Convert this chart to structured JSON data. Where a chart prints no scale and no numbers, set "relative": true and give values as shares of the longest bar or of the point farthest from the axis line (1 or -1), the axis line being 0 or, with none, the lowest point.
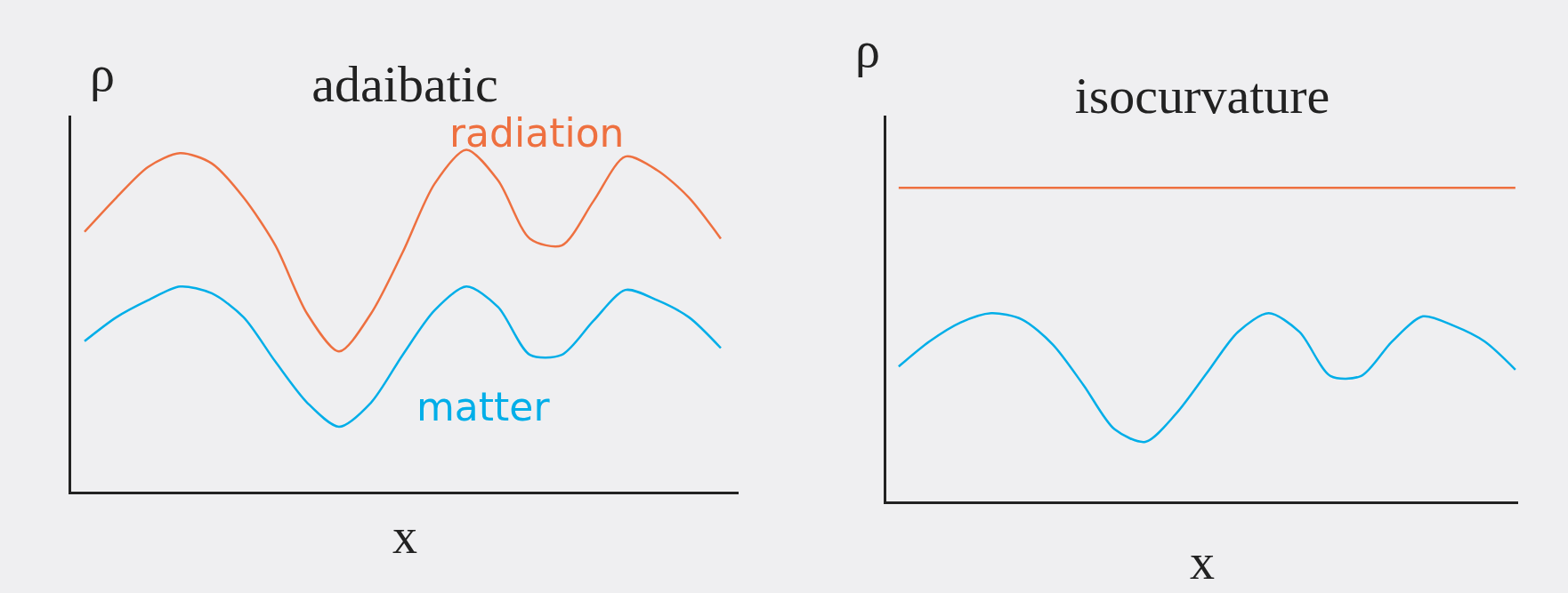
{
  "chart_data": [
    {
      "type": "line",
      "title": "adaibatic",
      "xlabel": "x",
      "ylabel": "ρ",
      "relative": true,
      "grid": false,
      "legend": false,
      "marker": "none",
      "line_style": "solid",
      "categories": [
        null,
        null,
        null,
        null,
        null,
        null,
        null,
        null,
        null,
        null,
        null,
        null,
        null,
        null,
        null,
        null,
        null,
        null,
        null,
        null,
        null
      ],
      "series": [
        {
          "name": "radiation",
          "color": "#ee7040",
          "values": [
            0.76,
            0.86,
            0.95,
            0.99,
            0.96,
            0.86,
            0.72,
            0.52,
            0.41,
            0.52,
            0.7,
            0.9,
            1.0,
            0.91,
            0.74,
            0.72,
            0.85,
            0.98,
            0.94,
            0.86,
            0.74
          ]
        },
        {
          "name": "matter",
          "color": "#00aee8",
          "values": [
            0.44,
            0.51,
            0.56,
            0.6,
            0.58,
            0.51,
            0.38,
            0.26,
            0.19,
            0.26,
            0.4,
            0.53,
            0.6,
            0.54,
            0.4,
            0.4,
            0.5,
            0.59,
            0.56,
            0.51,
            0.42
          ]
        }
      ]
    },
    {
      "type": "line",
      "title": "isocurvature",
      "xlabel": "x",
      "ylabel": "ρ",
      "relative": true,
      "grid": false,
      "legend": false,
      "marker": "none",
      "line_style": "solid",
      "categories": [
        null,
        null,
        null,
        null,
        null,
        null,
        null,
        null,
        null,
        null,
        null,
        null,
        null,
        null,
        null,
        null,
        null,
        null,
        null,
        null,
        null
      ],
      "series": [
        {
          "color": "#ee7040",
          "values": [
            1,
            1,
            1,
            1,
            1,
            1,
            1,
            1,
            1,
            1,
            1,
            1,
            1,
            1,
            1,
            1,
            1,
            1,
            1,
            1,
            1
          ]
        },
        {
          "color": "#00aee8",
          "values": [
            0.43,
            0.51,
            0.57,
            0.6,
            0.58,
            0.5,
            0.37,
            0.23,
            0.19,
            0.28,
            0.41,
            0.54,
            0.6,
            0.54,
            0.4,
            0.4,
            0.51,
            0.59,
            0.56,
            0.51,
            0.42
          ]
        }
      ]
    }
  ]
}
